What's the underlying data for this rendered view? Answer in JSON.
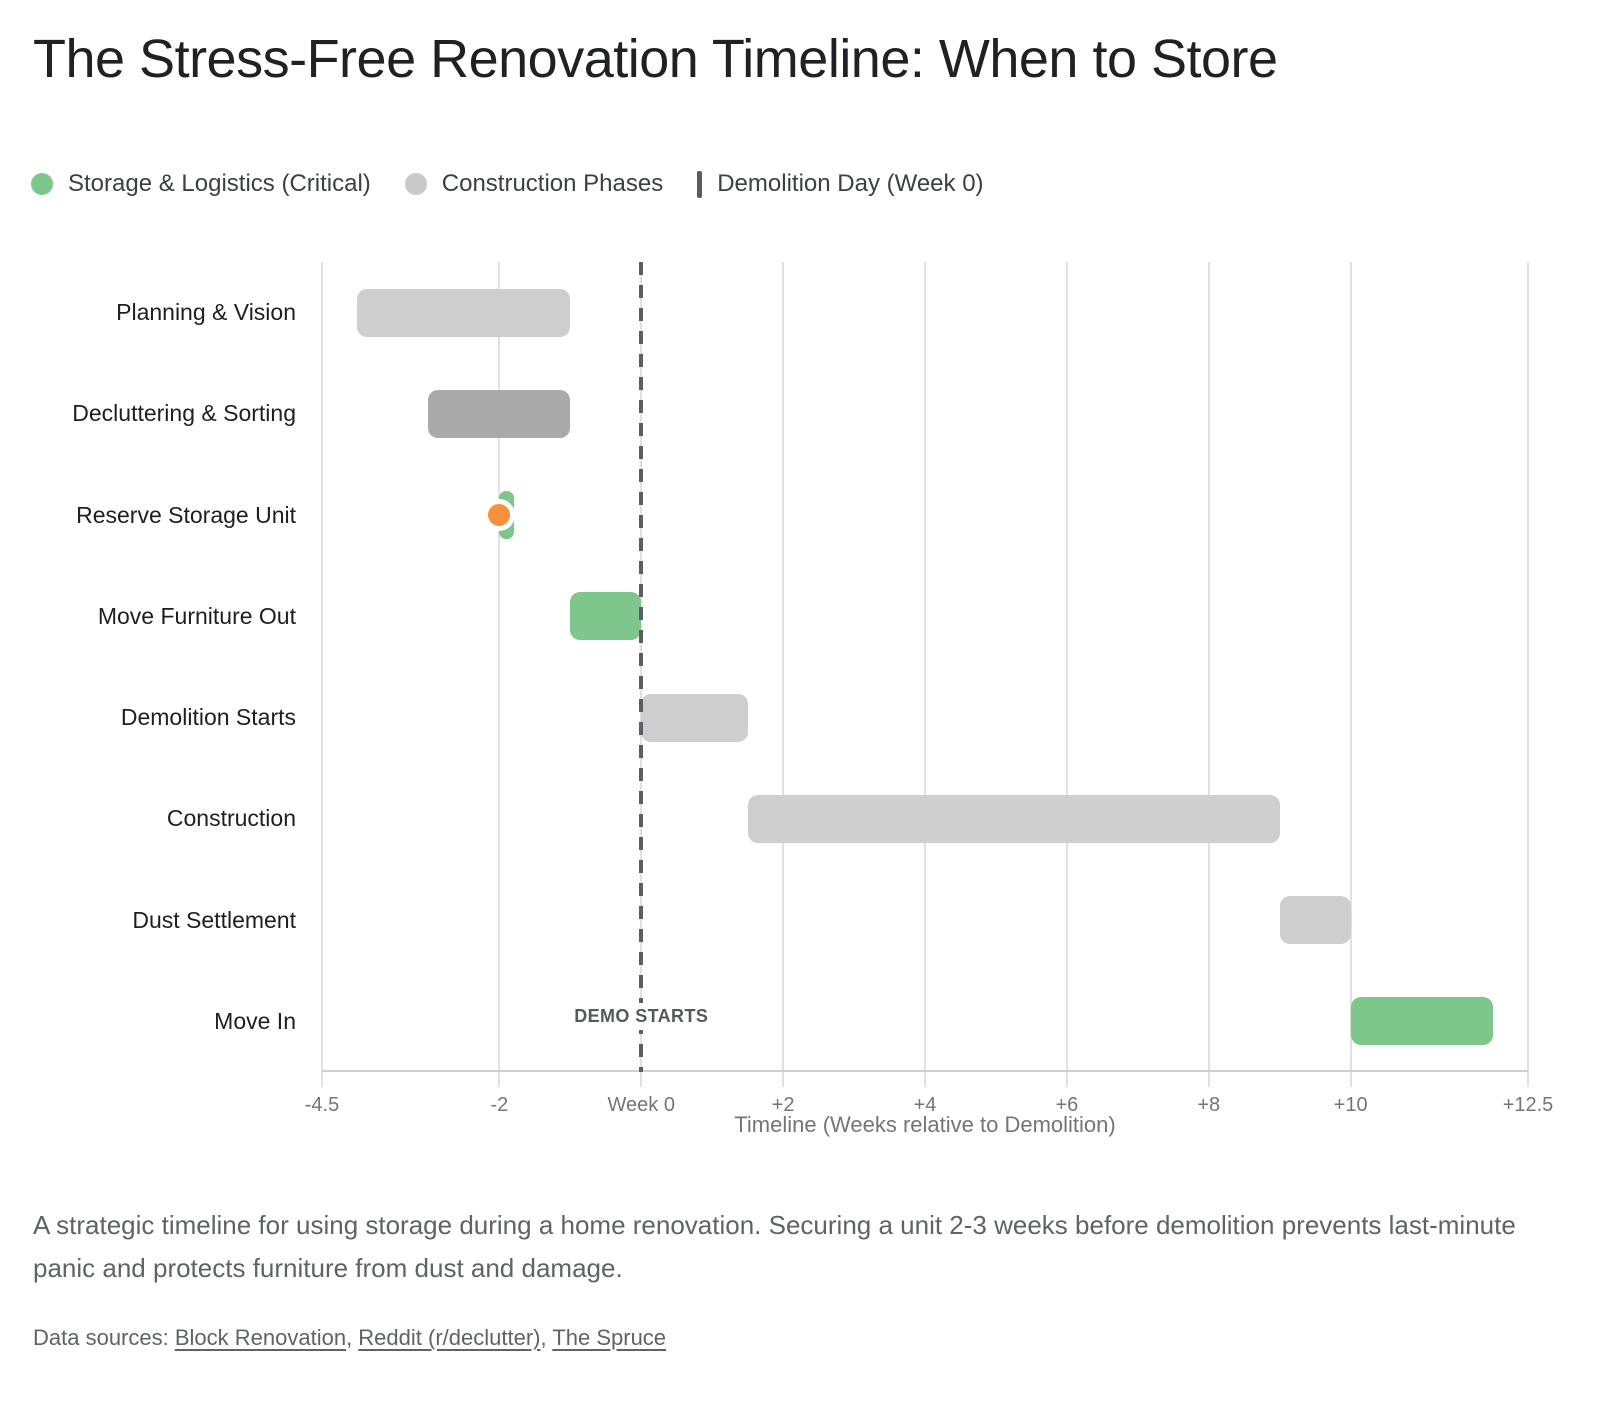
{
  "title": "The Stress-Free Renovation Timeline: When to Store",
  "legend": {
    "items": [
      {
        "label": "Storage & Logistics (Critical)",
        "marker": "dot",
        "color": "#7fc68d"
      },
      {
        "label": "Construction Phases",
        "marker": "dot",
        "color": "#c9c9c9"
      },
      {
        "label": "Demolition Day (Week 0)",
        "marker": "vline",
        "color": "#5b5f63"
      }
    ]
  },
  "chart_data": {
    "type": "bar",
    "subtype": "gantt-horizontal-range",
    "grid": true,
    "categories": [
      "Planning & Vision",
      "Decluttering & Sorting",
      "Reserve Storage Unit",
      "Move Furniture Out",
      "Demolition Starts",
      "Construction",
      "Dust Settlement",
      "Move In"
    ],
    "bars": [
      {
        "category": "Planning & Vision",
        "start": -4,
        "end": -1,
        "color": "#cecece",
        "series": "Construction Phases"
      },
      {
        "category": "Decluttering & Sorting",
        "start": -3,
        "end": -1,
        "color": "#a9a9a9",
        "series": "Construction Phases"
      },
      {
        "category": "Reserve Storage Unit",
        "start": -2,
        "end": -1.8,
        "color": "#7fc68d",
        "series": "Storage & Logistics (Critical)"
      },
      {
        "category": "Move Furniture Out",
        "start": -1,
        "end": 0,
        "color": "#7fc68d",
        "series": "Storage & Logistics (Critical)"
      },
      {
        "category": "Demolition Starts",
        "start": 0,
        "end": 1.5,
        "color": "#cecece",
        "series": "Construction Phases"
      },
      {
        "category": "Construction",
        "start": 1.5,
        "end": 9,
        "color": "#cecece",
        "series": "Construction Phases"
      },
      {
        "category": "Dust Settlement",
        "start": 9,
        "end": 10,
        "color": "#cecece",
        "series": "Construction Phases"
      },
      {
        "category": "Move In",
        "start": 10,
        "end": 12,
        "color": "#7fc68d",
        "series": "Storage & Logistics (Critical)"
      }
    ],
    "point_marker": {
      "category": "Reserve Storage Unit",
      "x": -2,
      "color": "#f6923e",
      "ring_color": "#ffffff"
    },
    "demo_line": {
      "x": 0,
      "label": "DEMO STARTS",
      "color": "#5b5f63"
    },
    "xlabel": "Timeline (Weeks relative to Demolition)",
    "xlim": [
      -4.5,
      12.5
    ],
    "xticks": [
      {
        "v": -4.5,
        "label": "-4.5"
      },
      {
        "v": -2,
        "label": "-2"
      },
      {
        "v": 0,
        "label": "Week 0"
      },
      {
        "v": 2,
        "label": "+2"
      },
      {
        "v": 4,
        "label": "+4"
      },
      {
        "v": 6,
        "label": "+6"
      },
      {
        "v": 8,
        "label": "+8"
      },
      {
        "v": 10,
        "label": "+10"
      },
      {
        "v": 12.5,
        "label": "+12.5"
      }
    ]
  },
  "caption": "A strategic timeline for using storage during a home renovation. Securing a unit 2-3 weeks before demolition prevents last-minute panic and protects furniture from dust and damage.",
  "sources": {
    "prefix": "Data sources: ",
    "separator": ", ",
    "links": [
      "Block Renovation",
      "Reddit (r/declutter)",
      "The Spruce"
    ]
  }
}
